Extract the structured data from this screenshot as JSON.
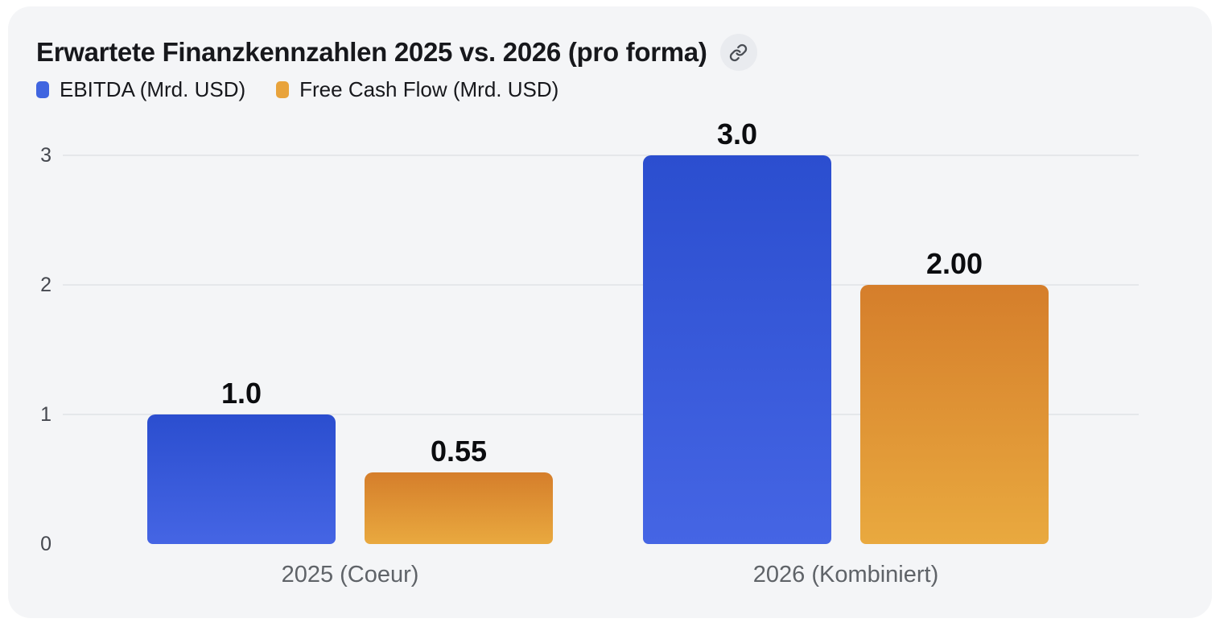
{
  "header": {
    "title": "Erwartete Finanzkennzahlen 2025 vs. 2026 (pro forma)"
  },
  "legend": [
    {
      "label": "EBITDA (Mrd. USD)",
      "color": "#4065e0"
    },
    {
      "label": "Free Cash Flow (Mrd. USD)",
      "color": "#e8a33c"
    }
  ],
  "axis": {
    "y_tick_labels": [
      "0",
      "1",
      "2",
      "3"
    ]
  },
  "chart_data": {
    "type": "bar",
    "title": "Erwartete Finanzkennzahlen 2025 vs. 2026 (pro forma)",
    "categories": [
      "2025 (Coeur)",
      "2026 (Kombiniert)"
    ],
    "series": [
      {
        "name": "EBITDA (Mrd. USD)",
        "values": [
          1.0,
          3.0
        ],
        "value_labels": [
          "1.0",
          "3.0"
        ],
        "gradient_top": "#2b4ecf",
        "gradient_bottom": "#4565e4"
      },
      {
        "name": "Free Cash Flow (Mrd. USD)",
        "values": [
          0.55,
          2.0
        ],
        "value_labels": [
          "0.55",
          "2.00"
        ],
        "gradient_top": "#d57e2b",
        "gradient_bottom": "#e9a93f"
      }
    ],
    "ylim": [
      0,
      3
    ],
    "y_ticks": [
      0,
      1,
      2,
      3
    ],
    "grid": true,
    "legend_position": "top-left"
  },
  "colors": {
    "page_bg": "#ffffff",
    "card_bg": "#f4f5f7",
    "gridline": "#e5e7ea",
    "tick_label": "#45484f",
    "category_label": "#5f6368",
    "value_label": "#0b0c0f",
    "title": "#17181c",
    "icon_circle_bg": "#e9ebef",
    "icon_color": "#4a4e55"
  }
}
